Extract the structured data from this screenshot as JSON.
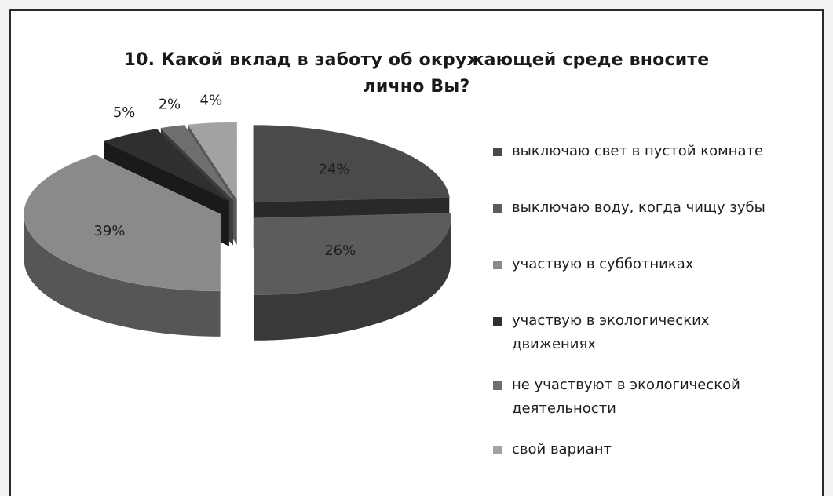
{
  "chart_data": {
    "type": "pie",
    "title": "10.  Какой вклад в заботу об окружающей среде вносите лично Вы?",
    "title_lines": [
      "10.  Какой вклад в заботу об окружающей среде вносите",
      "лично Вы?"
    ],
    "legend_placement": "right",
    "categories": [
      "выключаю свет в пустой комнате",
      "выключаю воду, когда чищу зубы",
      "участвую в субботниках",
      "участвую в экологических движениях",
      "не участвуют в экологической деятельности",
      "свой вариант"
    ],
    "legend_lines": [
      [
        "выключаю свет в пустой комнате"
      ],
      [
        "выключаю воду, когда чищу зубы"
      ],
      [
        "участвую в субботниках"
      ],
      [
        "участвую в экологических",
        "движениях"
      ],
      [
        "не участвуют в экологической",
        "деятельности"
      ],
      [
        "свой вариант"
      ]
    ],
    "values": [
      24,
      26,
      39,
      5,
      2,
      4
    ],
    "data_labels": [
      "24%",
      "26%",
      "39%",
      "5%",
      "2%",
      "4%"
    ],
    "colors": [
      "#4a4a4a",
      "#5c5c5c",
      "#8a8a8a",
      "#2f2f2f",
      "#6e6e6e",
      "#a2a2a2"
    ]
  }
}
